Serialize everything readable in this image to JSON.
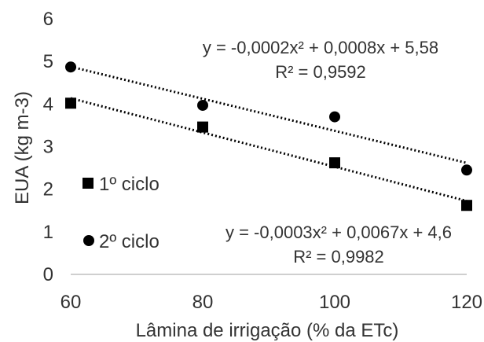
{
  "chart_data": {
    "type": "scatter",
    "xlabel": "Lâmina de irrigação (% da ETc)",
    "ylabel": "EUA (kg m-3)",
    "xlim": [
      60,
      120
    ],
    "ylim": [
      0,
      6
    ],
    "xticks": [
      "60",
      "80",
      "100",
      "120"
    ],
    "yticks": [
      "0",
      "1",
      "2",
      "3",
      "4",
      "5",
      "6"
    ],
    "grid": false,
    "legend_position": "left",
    "series": [
      {
        "name": "1º ciclo",
        "marker": "square",
        "color": "#000000",
        "x": [
          60,
          80,
          100,
          120
        ],
        "y": [
          4.02,
          3.46,
          2.62,
          1.62
        ],
        "trendline": {
          "type": "polynomial",
          "equation": "y = -0,0003x² + 0,0067x + 4,6",
          "r2": "R² = 0,9982"
        }
      },
      {
        "name": "2º ciclo",
        "marker": "circle",
        "color": "#000000",
        "x": [
          60,
          80,
          100,
          120
        ],
        "y": [
          4.87,
          3.97,
          3.7,
          2.45
        ],
        "trendline": {
          "type": "polynomial",
          "equation": "y = -0,0002x² + 0,0008x + 5,58",
          "r2": "R² = 0,9592"
        }
      }
    ]
  }
}
